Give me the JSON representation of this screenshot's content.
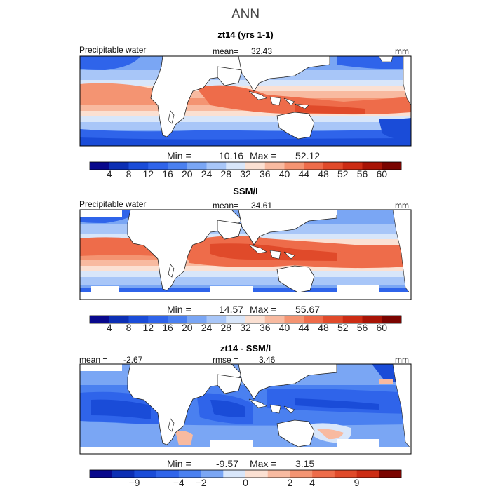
{
  "title": "ANN",
  "panels": [
    {
      "title": "zt14 (yrs 1-1)",
      "left_label": "Precipitable water",
      "mean_label": "mean=",
      "mean_value": "32.43",
      "units": "mm",
      "min_label": "Min =",
      "min_value": "10.16",
      "max_label": "Max =",
      "max_value": "52.12",
      "colorbar_ticks": [
        "4",
        "8",
        "12",
        "16",
        "20",
        "24",
        "28",
        "32",
        "36",
        "40",
        "44",
        "48",
        "52",
        "56",
        "60"
      ]
    },
    {
      "title": "SSM/I",
      "left_label": "Precipitable water",
      "mean_label": "mean=",
      "mean_value": "34.61",
      "units": "mm",
      "min_label": "Min =",
      "min_value": "14.57",
      "max_label": "Max =",
      "max_value": "55.67",
      "colorbar_ticks": [
        "4",
        "8",
        "12",
        "16",
        "20",
        "24",
        "28",
        "32",
        "36",
        "40",
        "44",
        "48",
        "52",
        "56",
        "60"
      ]
    },
    {
      "title": "zt14 - SSM/I",
      "left_label": "mean =",
      "left_value": "-2.67",
      "mid_label": "rmse =",
      "mid_value": "3.46",
      "units": "mm",
      "min_label": "Min =",
      "min_value": "-9.57",
      "max_label": "Max =",
      "max_value": "3.15",
      "colorbar_ticks": [
        "−9",
        "−4",
        "−2",
        "0",
        "2",
        "4",
        "9"
      ]
    }
  ],
  "colors": {
    "scale16": [
      "#08088c",
      "#0c2fb4",
      "#1a4cd8",
      "#2f64ea",
      "#4a80f0",
      "#7aa6f4",
      "#a8c6f8",
      "#d8e6fa",
      "#fbe0d2",
      "#f8baa0",
      "#f49472",
      "#ee6c4a",
      "#e04a2a",
      "#cc2c14",
      "#a81406",
      "#7a0400"
    ],
    "diff14": [
      "#08088c",
      "#0c2fb4",
      "#1a4cd8",
      "#2f64ea",
      "#4a80f0",
      "#7aa6f4",
      "#d8e6fa",
      "#fbe0d2",
      "#f8baa0",
      "#f49472",
      "#ee6c4a",
      "#e04a2a",
      "#cc2c14",
      "#7a0400"
    ]
  }
}
